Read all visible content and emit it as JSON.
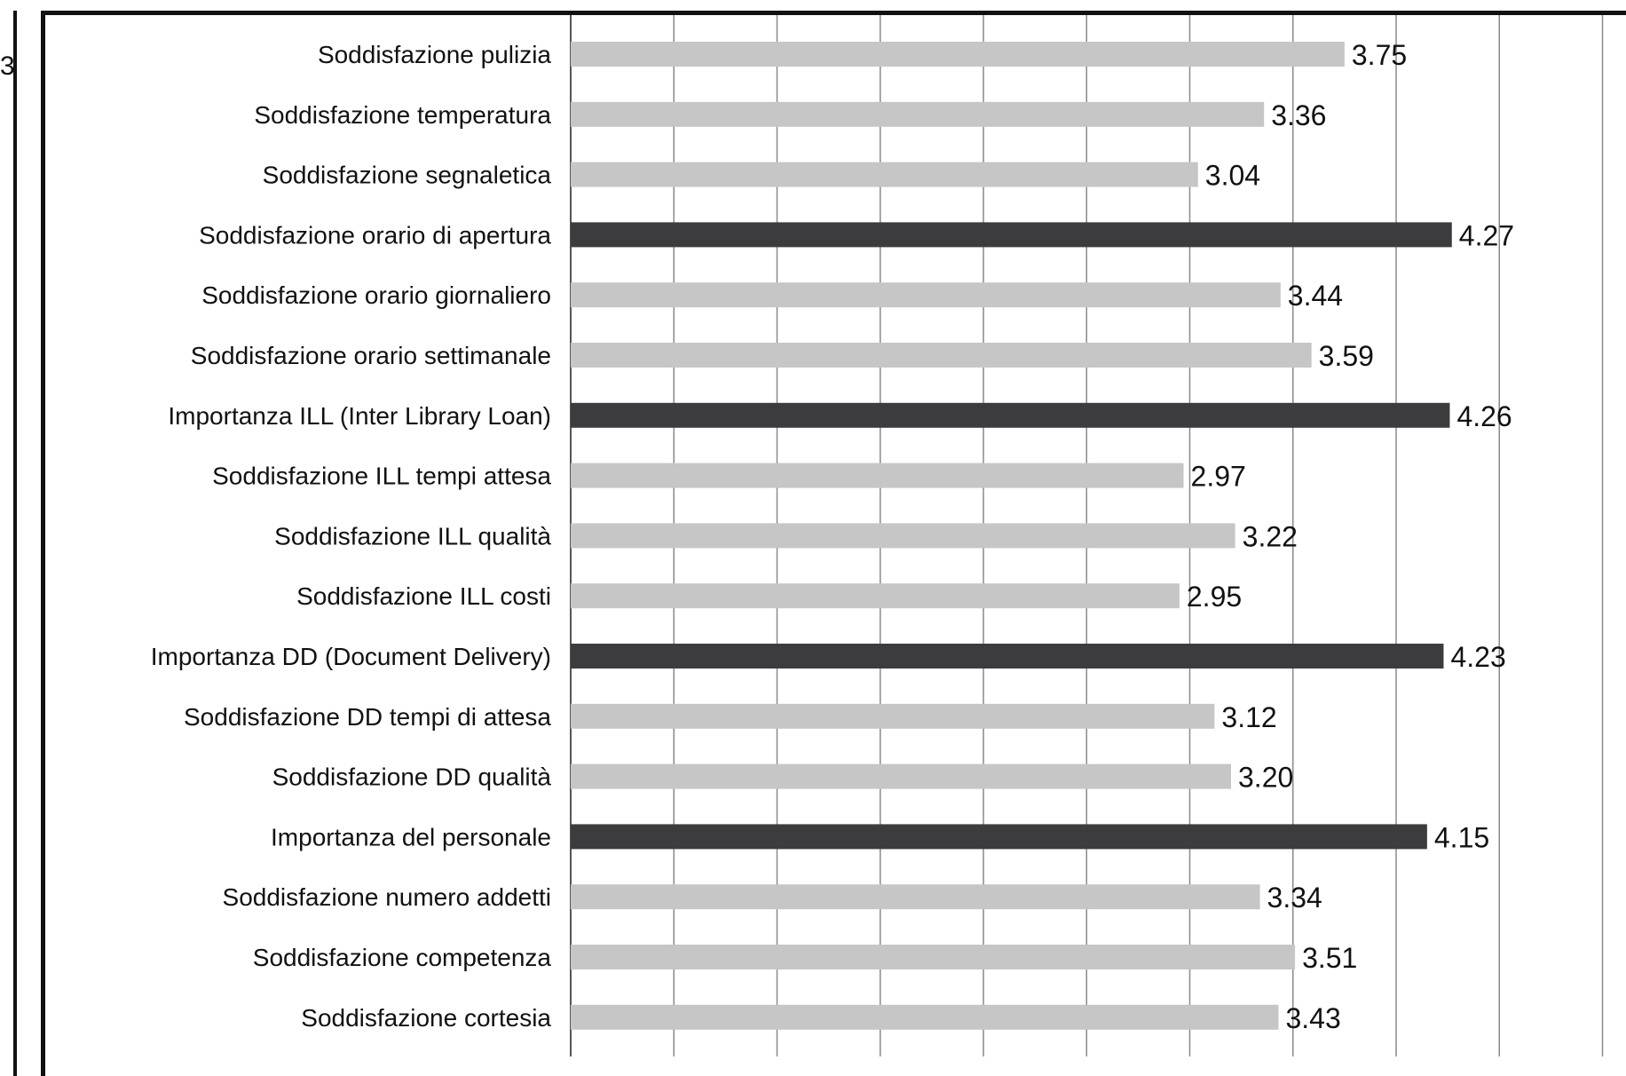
{
  "chart_data": {
    "type": "bar",
    "orientation": "horizontal",
    "title": "",
    "xlabel": "",
    "ylabel": "",
    "xlim": [
      0,
      5
    ],
    "grid": true,
    "legend": "none",
    "colors": {
      "satisfaction": "#c6c6c6",
      "importance": "#3c3c3e",
      "grid": "#8a8a8a",
      "frame": "#111111"
    },
    "categories": [
      "Soddisfazione pulizia",
      "Soddisfazione temperatura",
      "Soddisfazione segnaletica",
      "Soddisfazione orario di apertura",
      "Soddisfazione orario giornaliero",
      "Soddisfazione orario settimanale",
      "Importanza ILL (Inter Library Loan)",
      "Soddisfazione ILL tempi attesa",
      "Soddisfazione ILL qualità",
      "Soddisfazione ILL costi",
      "Importanza DD (Document Delivery)",
      "Soddisfazione DD tempi di attesa",
      "Soddisfazione DD qualità",
      "Importanza del personale",
      "Soddisfazione numero addetti",
      "Soddisfazione competenza",
      "Soddisfazione cortesia"
    ],
    "values": [
      3.75,
      3.36,
      3.04,
      4.27,
      3.44,
      3.59,
      4.26,
      2.97,
      3.22,
      2.95,
      4.23,
      3.12,
      3.2,
      4.15,
      3.34,
      3.51,
      3.43
    ],
    "value_labels": [
      "3.75",
      "3.36",
      "3.04",
      "4.27",
      "3.44",
      "3.59",
      "4.26",
      "2.97",
      "3.22",
      "2.95",
      "4.23",
      "3.12",
      "3.20",
      "4.15",
      "3.34",
      "3.51",
      "3.43"
    ],
    "dark_bars": [
      3,
      6,
      10,
      13
    ]
  },
  "left_frame": {
    "glyph": "3"
  }
}
